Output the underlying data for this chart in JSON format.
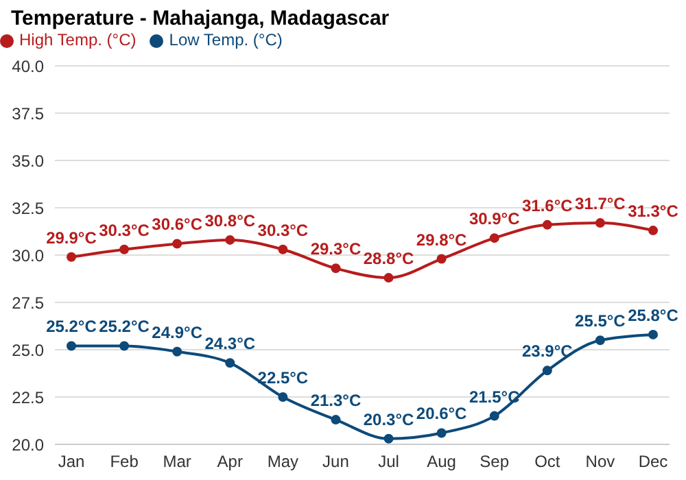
{
  "chart_data": {
    "type": "line",
    "title": "Temperature - Mahajanga, Madagascar",
    "categories": [
      "Jan",
      "Feb",
      "Mar",
      "Apr",
      "May",
      "Jun",
      "Jul",
      "Aug",
      "Sep",
      "Oct",
      "Nov",
      "Dec"
    ],
    "series": [
      {
        "name": "High Temp. (°C)",
        "color": "#b71c1c",
        "values": [
          29.9,
          30.3,
          30.6,
          30.8,
          30.3,
          29.3,
          28.8,
          29.8,
          30.9,
          31.6,
          31.7,
          31.3
        ],
        "value_labels": [
          "29.9°C",
          "30.3°C",
          "30.6°C",
          "30.8°C",
          "30.3°C",
          "29.3°C",
          "28.8°C",
          "29.8°C",
          "30.9°C",
          "31.6°C",
          "31.7°C",
          "31.3°C"
        ]
      },
      {
        "name": "Low Temp. (°C)",
        "color": "#0d4a7a",
        "values": [
          25.2,
          25.2,
          24.9,
          24.3,
          22.5,
          21.3,
          20.3,
          20.6,
          21.5,
          23.9,
          25.5,
          25.8
        ],
        "value_labels": [
          "25.2°C",
          "25.2°C",
          "24.9°C",
          "24.3°C",
          "22.5°C",
          "21.3°C",
          "20.3°C",
          "20.6°C",
          "21.5°C",
          "23.9°C",
          "25.5°C",
          "25.8°C"
        ]
      }
    ],
    "ylim": [
      20,
      40
    ],
    "yticks": [
      {
        "value": 20,
        "label": "20.0"
      },
      {
        "value": 22.5,
        "label": "22.5"
      },
      {
        "value": 25,
        "label": "25.0"
      },
      {
        "value": 27.5,
        "label": "27.5"
      },
      {
        "value": 30,
        "label": "30.0"
      },
      {
        "value": 32.5,
        "label": "32.5"
      },
      {
        "value": 35,
        "label": "35.0"
      },
      {
        "value": 37.5,
        "label": "37.5"
      },
      {
        "value": 40,
        "label": "40.0"
      }
    ],
    "grid": "y",
    "legend": "top left",
    "marker": "circle",
    "line_style": "solid"
  }
}
